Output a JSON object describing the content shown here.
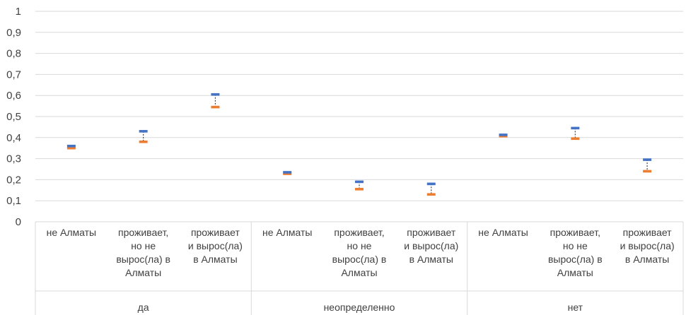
{
  "chart_data": {
    "type": "error-bar",
    "title": "",
    "xlabel": "",
    "ylabel": "",
    "ylim": [
      0,
      1
    ],
    "yticks": [
      "0",
      "0,1",
      "0,2",
      "0,3",
      "0,4",
      "0,5",
      "0,6",
      "0,7",
      "0,8",
      "0,9",
      "1"
    ],
    "grid": true,
    "groups": [
      "да",
      "неопределенно",
      "нет"
    ],
    "categories": [
      "не Алматы",
      "проживает, но не вырос(ла) в Алматы",
      "проживает и вырос(ла) в Алматы"
    ],
    "category_lines": [
      [
        "не Алматы"
      ],
      [
        "проживает,",
        "но не",
        "вырос(ла) в",
        "Алматы"
      ],
      [
        "проживает",
        "и вырос(ла)",
        "в Алматы"
      ]
    ],
    "points": [
      {
        "group": "да",
        "category": "не Алматы",
        "upper": 0.36,
        "lower": 0.35
      },
      {
        "group": "да",
        "category": "проживает, но не вырос(ла) в Алматы",
        "upper": 0.43,
        "lower": 0.38
      },
      {
        "group": "да",
        "category": "проживает и вырос(ла) в Алматы",
        "upper": 0.605,
        "lower": 0.545
      },
      {
        "group": "неопределенно",
        "category": "не Алматы",
        "upper": 0.235,
        "lower": 0.228
      },
      {
        "group": "неопределенно",
        "category": "проживает, но не вырос(ла) в Алматы",
        "upper": 0.19,
        "lower": 0.155
      },
      {
        "group": "неопределенно",
        "category": "проживает и вырос(ла) в Алматы",
        "upper": 0.18,
        "lower": 0.13
      },
      {
        "group": "нет",
        "category": "не Алматы",
        "upper": 0.413,
        "lower": 0.407
      },
      {
        "group": "нет",
        "category": "проживает, но не вырос(ла) в Алматы",
        "upper": 0.445,
        "lower": 0.395
      },
      {
        "group": "нет",
        "category": "проживает и вырос(ла) в Алматы",
        "upper": 0.295,
        "lower": 0.24
      }
    ],
    "colors": {
      "upper": "#4472C4",
      "lower": "#ED7D31",
      "whisker": "#404040",
      "grid": "#D9D9D9"
    }
  }
}
